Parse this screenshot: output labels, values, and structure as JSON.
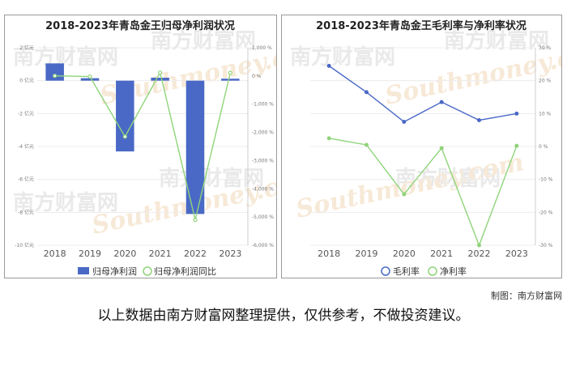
{
  "watermark": {
    "cn": "南方财富网",
    "en": "Southmoney.com"
  },
  "source": "制图：南方财富网",
  "disclaimer": "以上数据由南方财富网整理提供，仅供参考，不做投资建议。",
  "chart_data": [
    {
      "type": "bar+line",
      "title": "2018-2023年青岛金王归母净利润状况",
      "categories": [
        "2018",
        "2019",
        "2020",
        "2021",
        "2022",
        "2023"
      ],
      "yleft": {
        "ticks": [
          "2 亿元",
          "0 亿元",
          "-2 亿元",
          "-4 亿元",
          "-6 亿元",
          "-8 亿元",
          "-10 亿元"
        ],
        "ylim": [
          -10,
          2
        ]
      },
      "yright": {
        "ticks": [
          "1,000 %",
          "0 %",
          "-1,000 %",
          "-2,000 %",
          "-3,000 %",
          "-4,000 %",
          "-5,000 %",
          "-6,000 %"
        ],
        "ylim": [
          -6000,
          1000
        ]
      },
      "series": [
        {
          "name": "归母净利润",
          "type": "bar",
          "axis": "left",
          "color": "#4a69c6",
          "values": [
            1.05,
            0.15,
            -4.3,
            0.18,
            -8.1,
            0.12
          ]
        },
        {
          "name": "归母净利润同比",
          "type": "line",
          "axis": "right",
          "color": "#8fd47a",
          "values": [
            5,
            -20,
            -2150,
            120,
            -5100,
            110
          ]
        }
      ]
    },
    {
      "type": "line",
      "title": "2018-2023年青岛金王毛利率与净利率状况",
      "categories": [
        "2018",
        "2019",
        "2020",
        "2021",
        "2022",
        "2023"
      ],
      "yright": {
        "ticks": [
          "30 %",
          "20 %",
          "10 %",
          "0 %",
          "-10 %",
          "-20 %",
          "-30 %"
        ],
        "ylim": [
          -30,
          30
        ]
      },
      "series": [
        {
          "name": "毛利率",
          "color": "#4a69c6",
          "values": [
            24.5,
            16.5,
            7.5,
            13.5,
            8.0,
            10.0
          ]
        },
        {
          "name": "净利率",
          "color": "#8fd47a",
          "values": [
            2.5,
            0.5,
            -14.5,
            -0.5,
            -30.0,
            0.2
          ]
        }
      ]
    }
  ]
}
